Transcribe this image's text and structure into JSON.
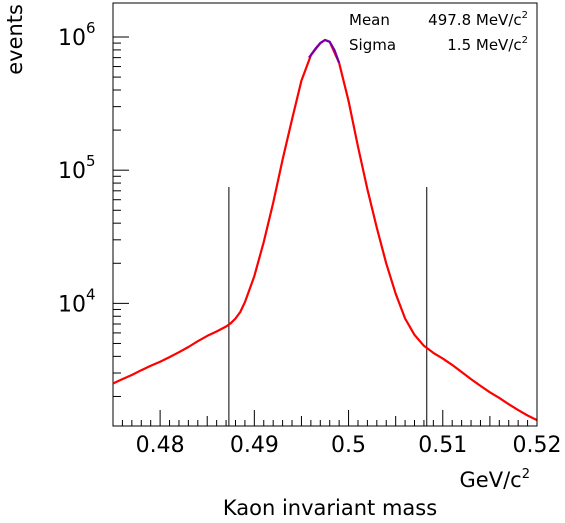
{
  "chart_data": {
    "type": "line",
    "xlabel": "GeV/c",
    "xlabel_sup": "2",
    "subtitle": "Kaon invariant mass",
    "ylabel": "events",
    "xlim": [
      0.475,
      0.52
    ],
    "ylim": [
      1200,
      1800000
    ],
    "y_scale": "log",
    "grid": false,
    "x_ticks": [
      {
        "value": 0.48,
        "label": "0.48"
      },
      {
        "value": 0.49,
        "label": "0.49"
      },
      {
        "value": 0.5,
        "label": "0.5"
      },
      {
        "value": 0.51,
        "label": "0.51"
      },
      {
        "value": 0.52,
        "label": "0.52"
      }
    ],
    "y_ticks": [
      {
        "value": 10000,
        "base": "10",
        "exp": "4"
      },
      {
        "value": 100000,
        "base": "10",
        "exp": "5"
      },
      {
        "value": 1000000,
        "base": "10",
        "exp": "6"
      }
    ],
    "stats": [
      {
        "name": "Mean",
        "value": "497.8 MeV/c",
        "sup": "2"
      },
      {
        "name": "Sigma",
        "value": "1.5 MeV/c",
        "sup": "2"
      }
    ],
    "cut_lines": [
      0.4873,
      0.5083
    ],
    "series": [
      {
        "color": "#ff0000",
        "points": [
          [
            0.475,
            2500
          ],
          [
            0.476,
            2700
          ],
          [
            0.477,
            2900
          ],
          [
            0.478,
            3150
          ],
          [
            0.479,
            3400
          ],
          [
            0.48,
            3650
          ],
          [
            0.481,
            3950
          ],
          [
            0.482,
            4300
          ],
          [
            0.483,
            4700
          ],
          [
            0.484,
            5200
          ],
          [
            0.485,
            5700
          ],
          [
            0.486,
            6150
          ],
          [
            0.487,
            6700
          ],
          [
            0.4875,
            7100
          ],
          [
            0.488,
            7700
          ],
          [
            0.4885,
            8600
          ],
          [
            0.489,
            10200
          ],
          [
            0.49,
            16000
          ],
          [
            0.491,
            29000
          ],
          [
            0.492,
            57000
          ],
          [
            0.493,
            120000
          ],
          [
            0.494,
            240000
          ],
          [
            0.495,
            470000
          ],
          [
            0.496,
            730000
          ],
          [
            0.497,
            900000
          ],
          [
            0.4975,
            950000
          ],
          [
            0.498,
            920000
          ],
          [
            0.499,
            640000
          ],
          [
            0.5,
            330000
          ],
          [
            0.501,
            150000
          ],
          [
            0.502,
            72000
          ],
          [
            0.503,
            37000
          ],
          [
            0.504,
            20000
          ],
          [
            0.505,
            11800
          ],
          [
            0.506,
            7700
          ],
          [
            0.507,
            5800
          ],
          [
            0.508,
            4800
          ],
          [
            0.509,
            4250
          ],
          [
            0.51,
            3850
          ],
          [
            0.511,
            3450
          ],
          [
            0.512,
            3050
          ],
          [
            0.513,
            2700
          ],
          [
            0.514,
            2400
          ],
          [
            0.515,
            2150
          ],
          [
            0.516,
            1950
          ],
          [
            0.517,
            1750
          ],
          [
            0.518,
            1580
          ],
          [
            0.519,
            1440
          ],
          [
            0.52,
            1330
          ]
        ]
      },
      {
        "color": "#7700aa",
        "points": [
          [
            0.4958,
            700000
          ],
          [
            0.4965,
            820000
          ],
          [
            0.497,
            900000
          ],
          [
            0.4975,
            950000
          ],
          [
            0.498,
            920000
          ],
          [
            0.4985,
            800000
          ],
          [
            0.499,
            640000
          ]
        ]
      }
    ]
  }
}
